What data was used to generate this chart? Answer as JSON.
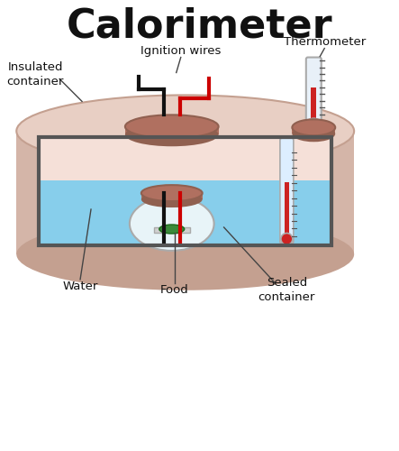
{
  "title": "Calorimeter",
  "title_fontsize": 32,
  "labels": {
    "ignition_wires": "Ignition wires",
    "thermometer": "Thermometer",
    "insulated_container": "Insulated\ncontainer",
    "water": "Water",
    "food": "Food",
    "sealed_container": "Sealed\ncontainer"
  },
  "colors": {
    "bg_color": "#ffffff",
    "outer_cylinder": "#d4b5a8",
    "outer_cylinder_dark": "#c4a090",
    "outer_cylinder_top": "#e8cfc4",
    "inner_window_bg": "#f5e0d8",
    "water_color": "#87ceeb",
    "sealed_container_bg": "#e8f4f8",
    "window_border": "#555555",
    "plug_top": "#b07060",
    "plug_dark": "#906050",
    "food_color": "#3a8a3a",
    "wire_black": "#111111",
    "wire_red": "#cc0000",
    "thermo_mercury": "#cc2222",
    "label_color": "#111111"
  }
}
